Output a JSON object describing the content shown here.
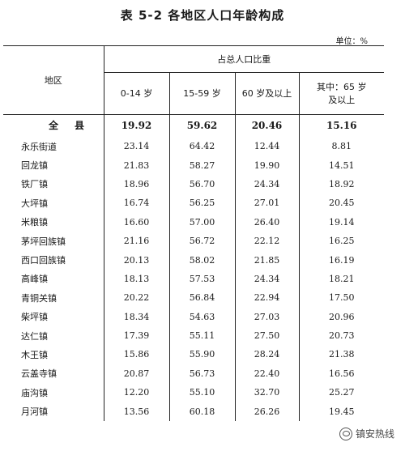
{
  "title": "表 5-2   各地区人口年龄构成",
  "unit": "单位：%",
  "header": {
    "region": "地区",
    "group": "占总人口比重",
    "col1": "0-14 岁",
    "col2": "15-59 岁",
    "col3": "60 岁及以上",
    "col4_line1": "其中：65 岁",
    "col4_line2": "及以上"
  },
  "rows": [
    {
      "name": "全　县",
      "v1": "19.92",
      "v2": "59.62",
      "v3": "20.46",
      "v4": "15.16"
    },
    {
      "name": "永乐街道",
      "v1": "23.14",
      "v2": "64.42",
      "v3": "12.44",
      "v4": "8.81"
    },
    {
      "name": "回龙镇",
      "v1": "21.83",
      "v2": "58.27",
      "v3": "19.90",
      "v4": "14.51"
    },
    {
      "name": "铁厂镇",
      "v1": "18.96",
      "v2": "56.70",
      "v3": "24.34",
      "v4": "18.92"
    },
    {
      "name": "大坪镇",
      "v1": "16.74",
      "v2": "56.25",
      "v3": "27.01",
      "v4": "20.45"
    },
    {
      "name": "米粮镇",
      "v1": "16.60",
      "v2": "57.00",
      "v3": "26.40",
      "v4": "19.14"
    },
    {
      "name": "茅坪回族镇",
      "v1": "21.16",
      "v2": "56.72",
      "v3": "22.12",
      "v4": "16.25"
    },
    {
      "name": "西口回族镇",
      "v1": "20.13",
      "v2": "58.02",
      "v3": "21.85",
      "v4": "16.19"
    },
    {
      "name": "高峰镇",
      "v1": "18.13",
      "v2": "57.53",
      "v3": "24.34",
      "v4": "18.21"
    },
    {
      "name": "青铜关镇",
      "v1": "20.22",
      "v2": "56.84",
      "v3": "22.94",
      "v4": "17.50"
    },
    {
      "name": "柴坪镇",
      "v1": "18.34",
      "v2": "54.63",
      "v3": "27.03",
      "v4": "20.96"
    },
    {
      "name": "达仁镇",
      "v1": "17.39",
      "v2": "55.11",
      "v3": "27.50",
      "v4": "20.73"
    },
    {
      "name": "木王镇",
      "v1": "15.86",
      "v2": "55.90",
      "v3": "28.24",
      "v4": "21.38"
    },
    {
      "name": "云盖寺镇",
      "v1": "20.87",
      "v2": "56.73",
      "v3": "22.40",
      "v4": "16.56"
    },
    {
      "name": "庙沟镇",
      "v1": "12.20",
      "v2": "55.10",
      "v3": "32.70",
      "v4": "25.27"
    },
    {
      "name": "月河镇",
      "v1": "13.56",
      "v2": "60.18",
      "v3": "26.26",
      "v4": "19.45"
    }
  ],
  "watermark": "镇安热线",
  "watermark_icon": "wechat-icon"
}
